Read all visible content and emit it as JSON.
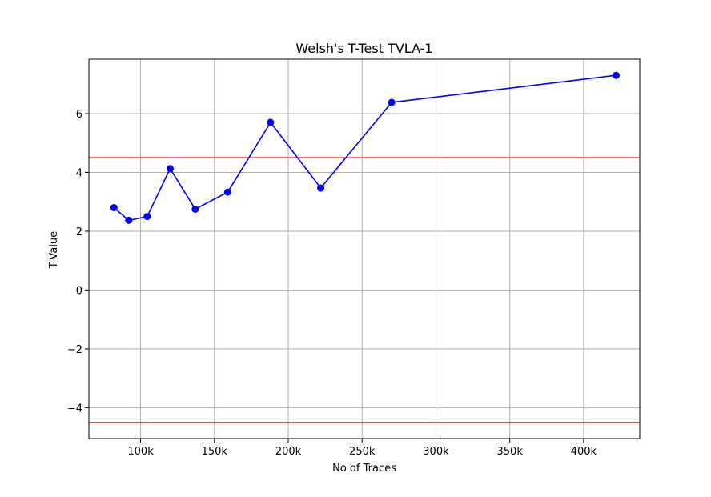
{
  "chart_data": {
    "type": "line",
    "title": "Welsh's T-Test TVLA-1",
    "xlabel": "No of Traces",
    "ylabel": "T-Value",
    "xlim": [
      65000,
      438000
    ],
    "ylim": [
      -5.05,
      7.85
    ],
    "grid": true,
    "x_ticks": [
      {
        "value": 100000,
        "label": "100k"
      },
      {
        "value": 150000,
        "label": "150k"
      },
      {
        "value": 200000,
        "label": "200k"
      },
      {
        "value": 250000,
        "label": "250k"
      },
      {
        "value": 300000,
        "label": "300k"
      },
      {
        "value": 350000,
        "label": "350k"
      },
      {
        "value": 400000,
        "label": "400k"
      }
    ],
    "y_ticks": [
      {
        "value": -4,
        "label": "−4"
      },
      {
        "value": -2,
        "label": "−2"
      },
      {
        "value": 0,
        "label": "0"
      },
      {
        "value": 2,
        "label": "2"
      },
      {
        "value": 4,
        "label": "4"
      },
      {
        "value": 6,
        "label": "6"
      }
    ],
    "series": [
      {
        "color": "#0000ff",
        "marker": "circle",
        "x": [
          82000,
          92000,
          104500,
          120000,
          137000,
          159000,
          188000,
          222000,
          270000,
          422000
        ],
        "y": [
          2.8,
          2.37,
          2.5,
          4.13,
          2.75,
          3.33,
          5.7,
          3.47,
          6.38,
          7.3
        ]
      }
    ],
    "thresholds": [
      {
        "y": 4.5,
        "color": "#ff0000"
      },
      {
        "y": -4.5,
        "color": "#ff0000"
      }
    ]
  }
}
